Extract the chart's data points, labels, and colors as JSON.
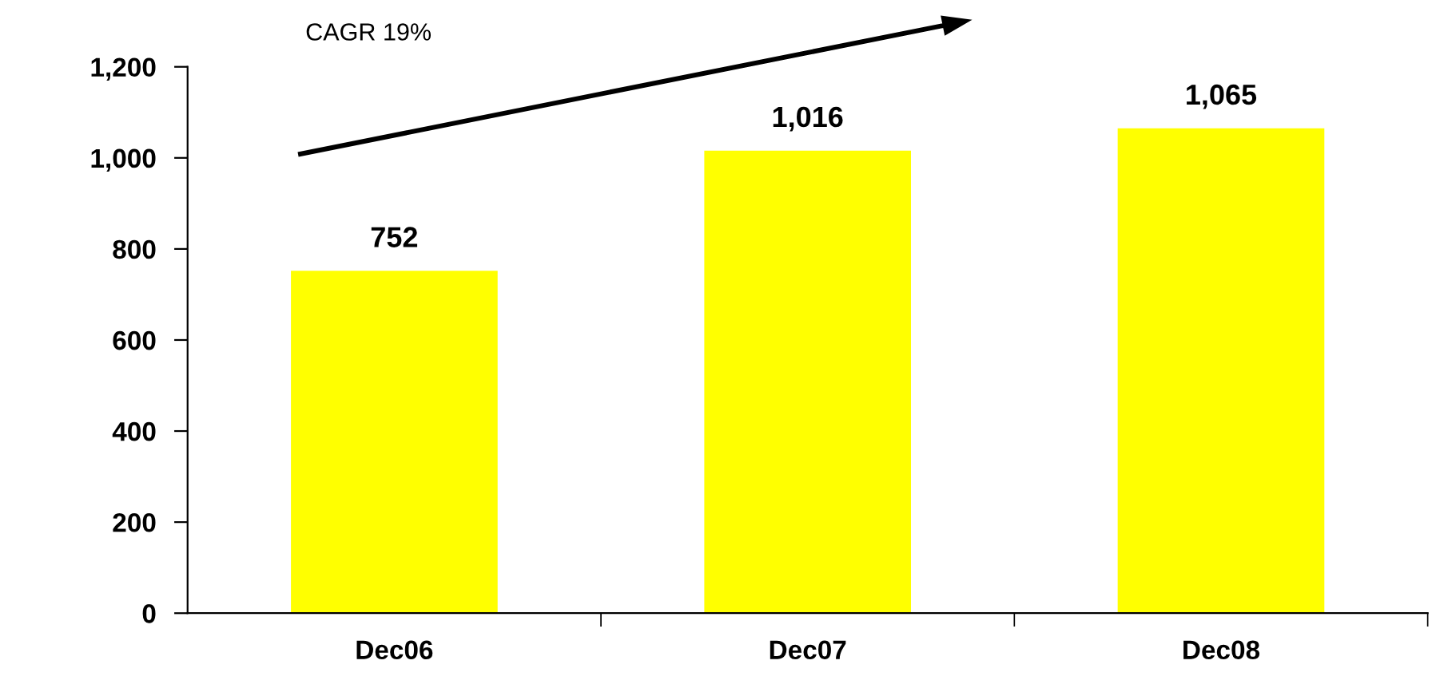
{
  "chart_data": {
    "type": "bar",
    "categories": [
      "Dec06",
      "Dec07",
      "Dec08"
    ],
    "values": [
      752,
      1016,
      1065
    ],
    "color": "#ffff00",
    "ylim": [
      0,
      1200
    ],
    "yticks": [
      {
        "value": 0,
        "label": "0"
      },
      {
        "value": 200,
        "label": "200"
      },
      {
        "value": 400,
        "label": "400"
      },
      {
        "value": 600,
        "label": "600"
      },
      {
        "value": 800,
        "label": "800"
      },
      {
        "value": 1000,
        "label": "1,000"
      },
      {
        "value": 1200,
        "label": "1,200"
      }
    ],
    "value_labels": [
      "752",
      "1,016",
      "1,065"
    ],
    "annotations": [
      "CAGR 19%"
    ],
    "grid": false,
    "legend": false
  }
}
